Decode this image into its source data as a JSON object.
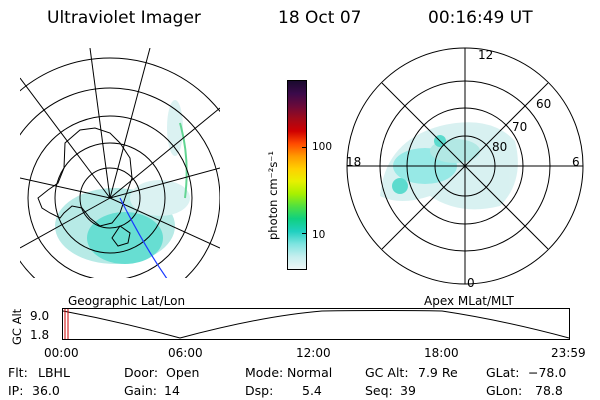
{
  "header": {
    "instrument": "Ultraviolet Imager",
    "date": "18 Oct 07",
    "time": "00:16:49 UT"
  },
  "geo_panel": {
    "caption": "Geographic Lat/Lon"
  },
  "apex_panel": {
    "caption": "Apex MLat/MLT",
    "mlt_labels": [
      "12",
      "18",
      "6",
      "0"
    ],
    "lat_labels": [
      "60",
      "70",
      "80"
    ]
  },
  "colorbar": {
    "unit_label": "photon cm⁻²s⁻¹",
    "ticks": [
      "100",
      "10"
    ],
    "colors": [
      "#1a0a2e",
      "#3b0a4a",
      "#6a0a3a",
      "#a00a1a",
      "#d00000",
      "#ff4a00",
      "#ff9a00",
      "#ffd000",
      "#e8f000",
      "#a8f000",
      "#50e040",
      "#10d080",
      "#20d0c0",
      "#7ee4e0",
      "#c4eeee",
      "#eef6f6"
    ],
    "accent": "#000000"
  },
  "altitude_strip": {
    "axis_label": "GC Alt",
    "y_ticks": [
      "9.0",
      "1.8"
    ],
    "x_ticks": [
      "00:00",
      "06:00",
      "12:00",
      "18:00",
      "23:59"
    ],
    "marker_color": "#cc0000"
  },
  "footer": {
    "filter_label": "Flt:",
    "filter_value": "LBHL",
    "ip_label": "IP:",
    "ip_value": "36.0",
    "door_label": "Door:",
    "door_value": "Open",
    "gain_label": "Gain:",
    "gain_value": "14",
    "mode_label": "Mode:",
    "mode_value": "Normal",
    "dsp_label": "Dsp:",
    "dsp_value": "5.4",
    "gcalt_label": "GC Alt:",
    "gcalt_value": "7.9 Re",
    "seq_label": "Seq:",
    "seq_value": "39",
    "glat_label": "GLat:",
    "glat_value": "−78.0",
    "glon_label": "GLon:",
    "glon_value": "78.8"
  }
}
